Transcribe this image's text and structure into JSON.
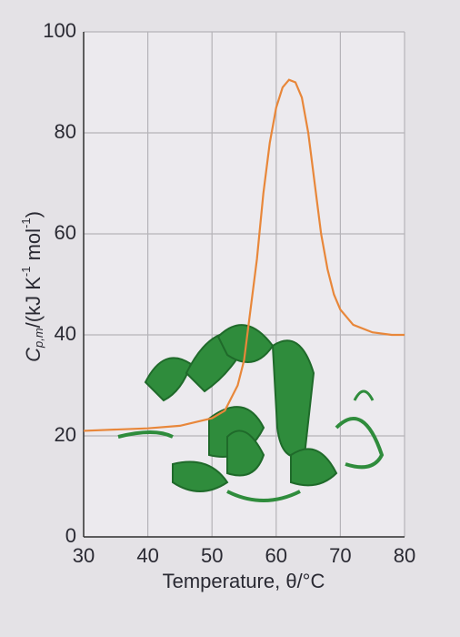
{
  "chart_data": {
    "type": "line",
    "x_label": "Temperature, θ/°C",
    "y_label": [
      "C",
      "p,m",
      "/(kJ K",
      "-1",
      " mol",
      "-1",
      ")"
    ],
    "x": [
      30,
      40,
      45,
      50,
      52,
      54,
      55,
      56,
      57,
      58,
      59,
      60,
      61,
      62,
      63,
      64,
      65,
      66,
      67,
      68,
      69,
      70,
      72,
      75,
      78,
      80
    ],
    "series": [
      {
        "name": "Cp,m",
        "color": "#e8873a",
        "values": [
          21,
          21.5,
          22,
          23.5,
          25,
          30,
          35,
          45,
          55,
          68,
          78,
          85,
          89,
          90.5,
          90,
          87,
          80,
          70,
          60,
          53,
          48,
          45,
          42,
          40.5,
          40,
          40
        ]
      }
    ],
    "xlim": [
      30,
      80
    ],
    "xticks": [
      30,
      40,
      50,
      60,
      70,
      80
    ],
    "ylim": [
      0,
      100
    ],
    "yticks": [
      0,
      20,
      40,
      60,
      80,
      100
    ],
    "grid": true
  }
}
